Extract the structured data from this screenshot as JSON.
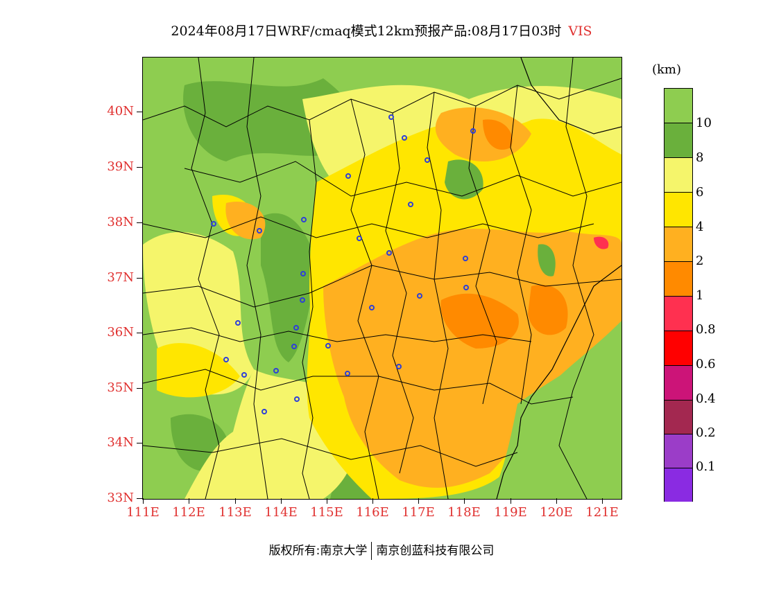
{
  "title": {
    "main": "2024年08月17日WRF/cmaq模式12km预报产品:08月17日03时",
    "variable": "VIS"
  },
  "map": {
    "y_axis_labels": [
      "40N",
      "39N",
      "38N",
      "37N",
      "36N",
      "35N",
      "34N",
      "33N"
    ],
    "x_axis_labels": [
      "111E",
      "112E",
      "113E",
      "114E",
      "115E",
      "116E",
      "117E",
      "118E",
      "119E",
      "120E",
      "121E"
    ],
    "lat_range": [
      33,
      41
    ],
    "lon_range": [
      111,
      121.4
    ]
  },
  "legend": {
    "unit": "(km)",
    "labels": [
      "10",
      "8",
      "6",
      "4",
      "2",
      "1",
      "0.8",
      "0.6",
      "0.4",
      "0.2",
      "0.1"
    ],
    "colors": [
      "#8ecd50",
      "#6ab03c",
      "#f5f56b",
      "#ffe600",
      "#ffb020",
      "#ff8a00",
      "#ff3050",
      "#ff0000",
      "#cc1478",
      "#a32850",
      "#9b3dc8",
      "#8a2be2"
    ]
  },
  "footer": {
    "copyright": "版权所有:南京大学",
    "company": "南京创蓝科技有限公司"
  }
}
